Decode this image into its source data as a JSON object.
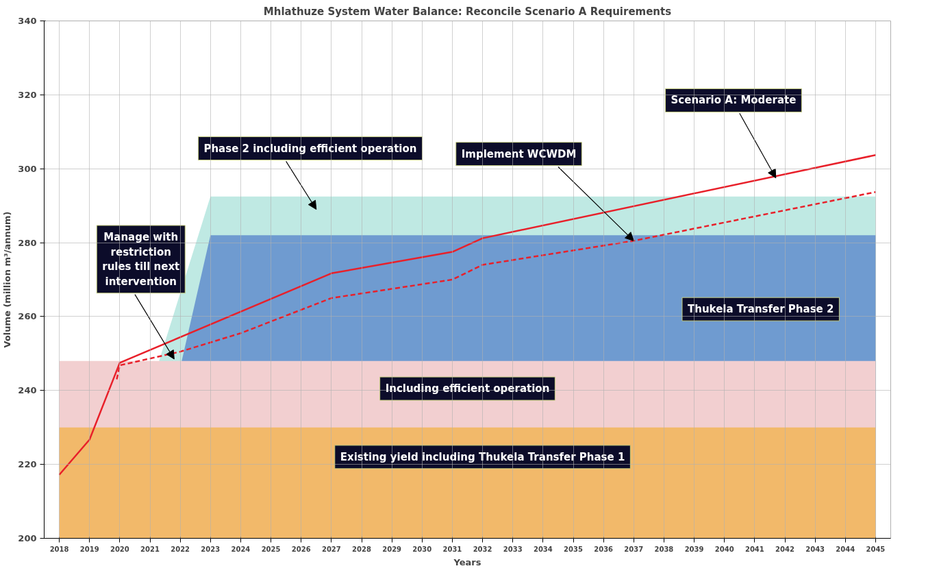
{
  "chart_data": {
    "type": "area",
    "title": "Mhlathuze System Water Balance: Reconcile Scenario A Requirements",
    "xlabel": "Years",
    "ylabel": "Volume (million m³/annum)",
    "x": [
      2018,
      2045
    ],
    "series": [
      {
        "name": "Existing yield including Thukela Transfer Phase 1",
        "color": "#f2b96a",
        "values": [
          230,
          230
        ]
      },
      {
        "name": "Including efficient operation",
        "color": "#f2cfd0",
        "values": [
          248,
          248
        ]
      },
      {
        "name": "Thukela Transfer Phase 2",
        "color": "#6f9bd0",
        "x": [
          2022.05,
          2023,
          2045
        ],
        "values": [
          248,
          282,
          282
        ]
      },
      {
        "name": "Phase 2 including efficient operation",
        "color": "#bfe9e3",
        "x": [
          2021.3,
          2023,
          2045
        ],
        "values": [
          248,
          292.5,
          292.5
        ]
      },
      {
        "name": "Scenario A: Moderate",
        "type": "line",
        "color": "#e8202a",
        "line_style": "solid",
        "x": [
          2018,
          2019,
          2020,
          2027,
          2031,
          2032,
          2045
        ],
        "values": [
          217.2,
          226.7,
          247.5,
          271.7,
          277.5,
          281.2,
          303.7
        ]
      },
      {
        "name": "Implement WCWDM",
        "type": "line",
        "color": "#e8202a",
        "line_style": "dashed",
        "x": [
          2019.9,
          2020,
          2022,
          2024,
          2027,
          2031,
          2032,
          2037,
          2045
        ],
        "values": [
          243,
          246.8,
          250.5,
          255.5,
          265,
          270,
          274,
          280.5,
          293.7
        ]
      }
    ],
    "annotations": [
      {
        "text": "Manage with restriction rules till next intervention",
        "x": 2021.8,
        "y": 248.5
      }
    ],
    "xlim": [
      2017.5,
      2045.5
    ],
    "xticks": [
      2018,
      2019,
      2020,
      2021,
      2022,
      2023,
      2024,
      2025,
      2026,
      2027,
      2028,
      2029,
      2030,
      2031,
      2032,
      2033,
      2034,
      2035,
      2036,
      2037,
      2038,
      2039,
      2040,
      2041,
      2042,
      2043,
      2044,
      2045
    ],
    "ylim": [
      200,
      340
    ],
    "yticks": [
      200,
      220,
      240,
      260,
      280,
      300,
      320,
      340
    ],
    "grid": true,
    "legend": false
  }
}
